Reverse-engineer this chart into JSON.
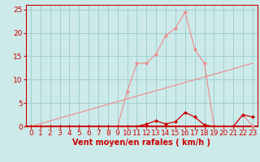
{
  "hours": [
    0,
    1,
    2,
    3,
    4,
    5,
    6,
    7,
    8,
    9,
    10,
    11,
    12,
    13,
    14,
    15,
    16,
    17,
    18,
    19,
    20,
    21,
    22,
    23
  ],
  "rafales": [
    0,
    0,
    0,
    0,
    0,
    0,
    0,
    0,
    0,
    0,
    7.5,
    13.5,
    13.5,
    15.5,
    19.5,
    21.0,
    24.5,
    16.5,
    13.5,
    0,
    0,
    0,
    2.5,
    0
  ],
  "vent_moyen": [
    0,
    0,
    0,
    0,
    0,
    0,
    0,
    0,
    0,
    0,
    0,
    0,
    0.5,
    1.2,
    0.5,
    1.0,
    3.0,
    2.0,
    0.3,
    0,
    0,
    0,
    2.5,
    2.0
  ],
  "trend_x": [
    0,
    23
  ],
  "trend_y": [
    0,
    13.5
  ],
  "xlabel": "Vent moyen/en rafales ( km/h )",
  "ylim": [
    0,
    26
  ],
  "xlim": [
    -0.5,
    23.5
  ],
  "yticks": [
    0,
    5,
    10,
    15,
    20,
    25
  ],
  "xticks": [
    0,
    1,
    2,
    3,
    4,
    5,
    6,
    7,
    8,
    9,
    10,
    11,
    12,
    13,
    14,
    15,
    16,
    17,
    18,
    19,
    20,
    21,
    22,
    23
  ],
  "bg_color": "#cceaea",
  "line_color_rafales": "#f08888",
  "line_color_vent": "#cc0000",
  "trend_color": "#f08888",
  "grid_color": "#99cccc",
  "axis_color": "#cc0000",
  "tick_color": "#cc0000",
  "xlabel_color": "#cc0000",
  "xlabel_fontsize": 7,
  "tick_fontsize": 6.5
}
